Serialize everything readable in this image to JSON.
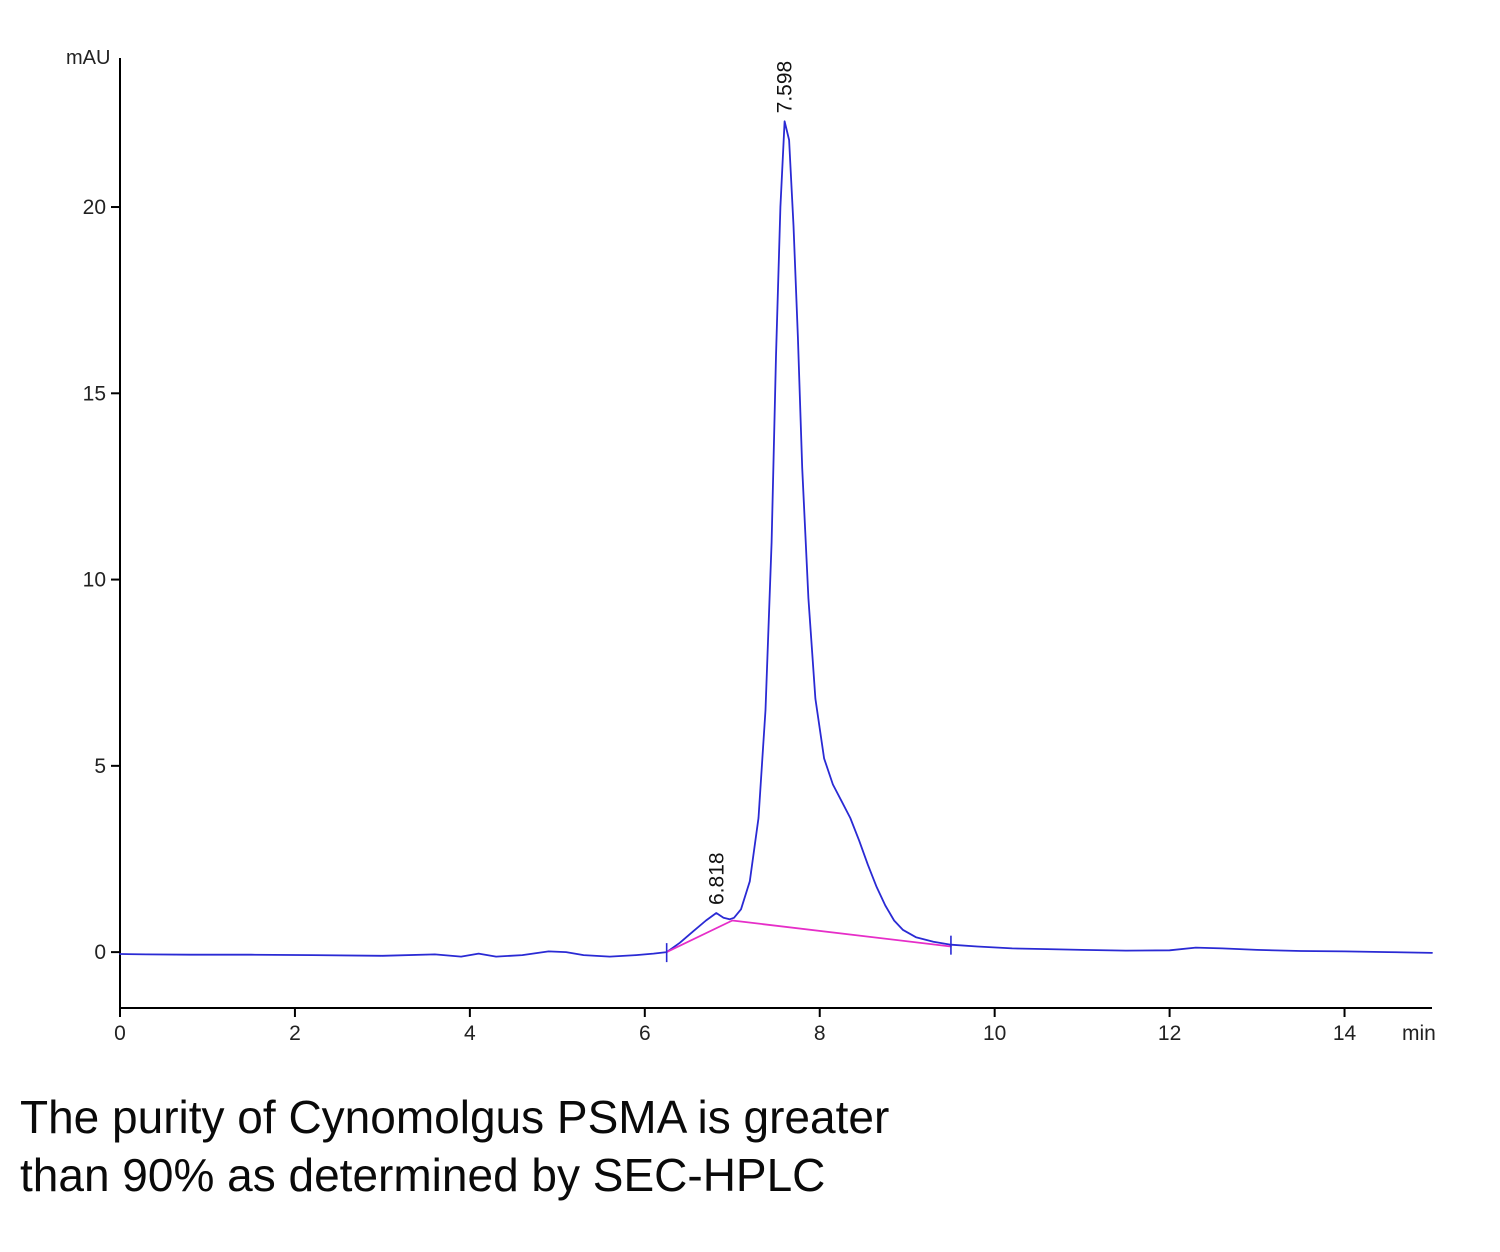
{
  "caption": {
    "line1": "The purity of Cynomolgus PSMA is greater",
    "line2": "than 90% as determined by SEC-HPLC"
  },
  "chart_data": {
    "type": "line",
    "title": "",
    "xlabel": "min",
    "ylabel": "mAU",
    "xlim": [
      0,
      15
    ],
    "ylim": [
      -1.5,
      24
    ],
    "x_ticks": [
      0,
      2,
      4,
      6,
      8,
      10,
      12,
      14
    ],
    "y_ticks": [
      0,
      5,
      10,
      15,
      20
    ],
    "grid": false,
    "legend": "none",
    "axis_color": "#000000",
    "tick_label_color": "#222222",
    "trace_color": "#2a2ad4",
    "baseline_color": "#e62ec8",
    "series": [
      {
        "name": "uv-trace",
        "color": "#2a2ad4",
        "points": [
          [
            0.0,
            -0.05
          ],
          [
            0.3,
            -0.06
          ],
          [
            0.8,
            -0.07
          ],
          [
            1.5,
            -0.07
          ],
          [
            2.2,
            -0.08
          ],
          [
            3.0,
            -0.1
          ],
          [
            3.6,
            -0.06
          ],
          [
            3.9,
            -0.12
          ],
          [
            4.1,
            -0.04
          ],
          [
            4.3,
            -0.12
          ],
          [
            4.6,
            -0.08
          ],
          [
            4.9,
            0.02
          ],
          [
            5.1,
            0.0
          ],
          [
            5.3,
            -0.08
          ],
          [
            5.6,
            -0.12
          ],
          [
            5.9,
            -0.08
          ],
          [
            6.1,
            -0.04
          ],
          [
            6.25,
            0.0
          ],
          [
            6.4,
            0.25
          ],
          [
            6.55,
            0.55
          ],
          [
            6.7,
            0.85
          ],
          [
            6.818,
            1.05
          ],
          [
            6.9,
            0.92
          ],
          [
            6.97,
            0.88
          ],
          [
            7.02,
            0.92
          ],
          [
            7.1,
            1.15
          ],
          [
            7.2,
            1.9
          ],
          [
            7.3,
            3.6
          ],
          [
            7.38,
            6.5
          ],
          [
            7.45,
            11.0
          ],
          [
            7.5,
            16.0
          ],
          [
            7.55,
            20.0
          ],
          [
            7.598,
            22.3
          ],
          [
            7.65,
            21.8
          ],
          [
            7.7,
            19.5
          ],
          [
            7.75,
            16.5
          ],
          [
            7.8,
            13.0
          ],
          [
            7.87,
            9.5
          ],
          [
            7.95,
            6.8
          ],
          [
            8.05,
            5.2
          ],
          [
            8.15,
            4.5
          ],
          [
            8.25,
            4.05
          ],
          [
            8.35,
            3.6
          ],
          [
            8.45,
            3.0
          ],
          [
            8.55,
            2.35
          ],
          [
            8.65,
            1.75
          ],
          [
            8.75,
            1.25
          ],
          [
            8.85,
            0.85
          ],
          [
            8.95,
            0.6
          ],
          [
            9.1,
            0.4
          ],
          [
            9.3,
            0.28
          ],
          [
            9.5,
            0.2
          ],
          [
            9.8,
            0.15
          ],
          [
            10.2,
            0.1
          ],
          [
            10.6,
            0.08
          ],
          [
            11.0,
            0.06
          ],
          [
            11.5,
            0.04
          ],
          [
            12.0,
            0.05
          ],
          [
            12.3,
            0.12
          ],
          [
            12.6,
            0.1
          ],
          [
            13.0,
            0.06
          ],
          [
            13.5,
            0.03
          ],
          [
            14.0,
            0.02
          ],
          [
            14.5,
            0.0
          ],
          [
            15.0,
            -0.02
          ]
        ]
      },
      {
        "name": "integration-baseline",
        "color": "#e62ec8",
        "points": [
          [
            6.25,
            0.0
          ],
          [
            7.0,
            0.85
          ],
          [
            9.5,
            0.15
          ]
        ]
      }
    ],
    "annotations": [
      {
        "label": "7.598",
        "x": 7.598,
        "y": 22.3,
        "rotation": -90
      },
      {
        "label": "6.818",
        "x": 6.818,
        "y": 1.05,
        "rotation": -90
      }
    ],
    "integration_marks": [
      {
        "x": 6.25,
        "y": 0.0
      },
      {
        "x": 9.5,
        "y": 0.2
      }
    ]
  }
}
